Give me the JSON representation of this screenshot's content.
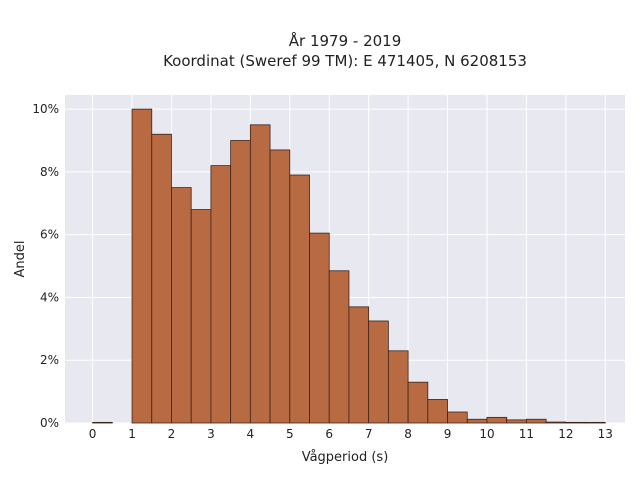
{
  "chart_data": {
    "type": "bar",
    "title_lines": [
      "År 1979 - 2019",
      "Koordinat (Sweref 99 TM): E 471405, N 6208153"
    ],
    "xlabel": "Vågperiod (s)",
    "ylabel": "Andel",
    "bin_width": 0.5,
    "x": [
      0.0,
      0.5,
      1.0,
      1.5,
      2.0,
      2.5,
      3.0,
      3.5,
      4.0,
      4.5,
      5.0,
      5.5,
      6.0,
      6.5,
      7.0,
      7.5,
      8.0,
      8.5,
      9.0,
      9.5,
      10.0,
      10.5,
      11.0,
      11.5,
      12.0,
      12.5
    ],
    "values": [
      0.02,
      0.0,
      10.0,
      9.2,
      7.5,
      6.8,
      8.2,
      9.0,
      9.5,
      8.7,
      7.9,
      6.05,
      4.85,
      3.7,
      3.25,
      2.3,
      1.3,
      0.75,
      0.35,
      0.12,
      0.18,
      0.1,
      0.12,
      0.03,
      0.02,
      0.02
    ],
    "x_ticks": [
      "0",
      "1",
      "2",
      "3",
      "4",
      "5",
      "6",
      "7",
      "8",
      "9",
      "10",
      "11",
      "12",
      "13"
    ],
    "y_ticks": [
      "0%",
      "2%",
      "4%",
      "6%",
      "8%",
      "10%"
    ],
    "xlim": [
      -0.7,
      13.5
    ],
    "ylim": [
      0,
      10.45
    ],
    "grid": true,
    "colors": {
      "bar_fill": "#b86a43",
      "bar_edge": "#3d2418",
      "plot_background": "#e8e8f1",
      "grid": "#ffffff"
    }
  }
}
